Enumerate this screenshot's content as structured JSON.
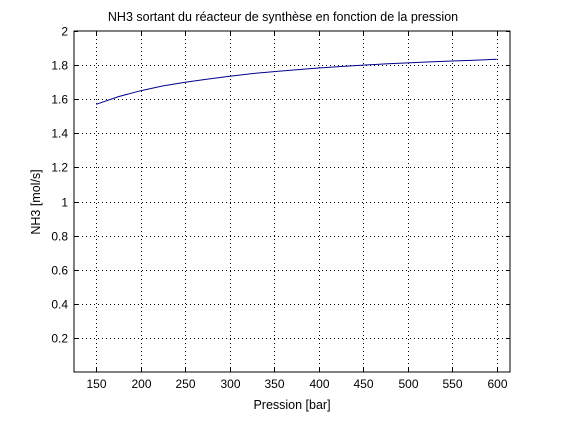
{
  "colors": {
    "background": "#ffffff",
    "axes": "#000000",
    "grid": "#000000",
    "series": "#00008b"
  },
  "chart_data": {
    "type": "line",
    "title": "NH3 sortant du réacteur de synthèse en fonction de la pression",
    "xlabel": "Pression [bar]",
    "ylabel": "NH3 [mol/s]",
    "xlim": [
      125,
      615
    ],
    "ylim": [
      0,
      2
    ],
    "grid": true,
    "x_ticks": [
      150,
      200,
      250,
      300,
      350,
      400,
      450,
      500,
      550,
      600
    ],
    "x_tick_labels": [
      "150",
      "200",
      "250",
      "300",
      "350",
      "400",
      "450",
      "500",
      "550",
      "600"
    ],
    "y_ticks": [
      0.2,
      0.4,
      0.6,
      0.8,
      1.0,
      1.2,
      1.4,
      1.6,
      1.8,
      2.0
    ],
    "y_tick_labels": [
      "0.2",
      "0.4",
      "0.6",
      "0.8",
      "1",
      "1.2",
      "1.4",
      "1.6",
      "1.8",
      "2"
    ],
    "series": [
      {
        "x": [
          150,
          175,
          200,
          225,
          250,
          275,
          300,
          325,
          350,
          375,
          400,
          425,
          450,
          475,
          500,
          525,
          550,
          575,
          600
        ],
        "y": [
          1.57,
          1.615,
          1.65,
          1.678,
          1.7,
          1.718,
          1.735,
          1.75,
          1.762,
          1.773,
          1.783,
          1.792,
          1.8,
          1.807,
          1.813,
          1.819,
          1.824,
          1.829,
          1.834
        ]
      }
    ]
  }
}
